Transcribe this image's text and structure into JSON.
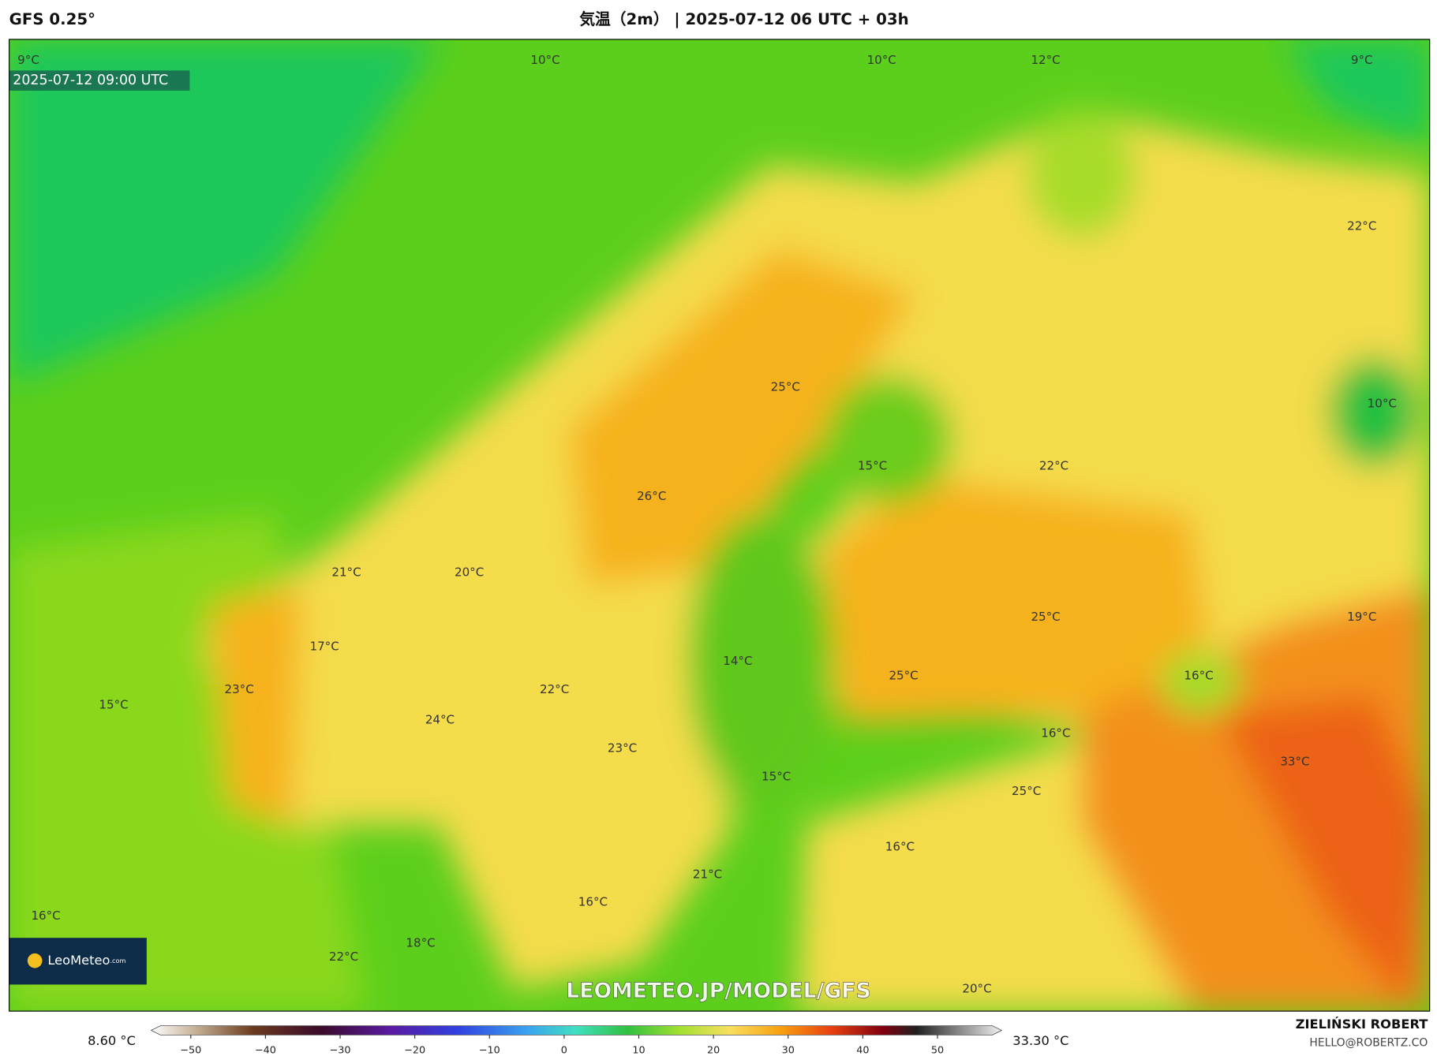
{
  "header": {
    "model": "GFS 0.25°",
    "title": "気温（2m） | 2025-07-12 06 UTC + 03h"
  },
  "map": {
    "timestamp": "2025-07-12 09:00 UTC",
    "labels": [
      "9°C",
      "10°C",
      "10°C",
      "12°C",
      "9°C",
      "22°C",
      "25°C",
      "10°C",
      "15°C",
      "22°C",
      "26°C",
      "21°C",
      "20°C",
      "19°C",
      "25°C",
      "17°C",
      "14°C",
      "25°C",
      "16°C",
      "23°C",
      "22°C",
      "15°C",
      "24°C",
      "16°C",
      "23°C",
      "33°C",
      "15°C",
      "25°C",
      "16°C",
      "21°C",
      "16°C",
      "16°C",
      "18°C",
      "22°C",
      "20°C"
    ],
    "logo": "LeoMeteo",
    "logo_suffix": ".com",
    "watermark": "LEOMETEO.JP/MODEL/GFS"
  },
  "colorbar": {
    "min_label": "8.60 °C",
    "max_label": "33.30 °C",
    "lim": [
      -55.3,
      58.6
    ],
    "ticks": [
      {
        "value": -50,
        "label": "−50"
      },
      {
        "value": -40,
        "label": "−40"
      },
      {
        "value": -30,
        "label": "−30"
      },
      {
        "value": -20,
        "label": "−20"
      },
      {
        "value": -10,
        "label": "−10"
      },
      0,
      10,
      20,
      30,
      40,
      50
    ]
  },
  "footer": {
    "author": "ZIELIŃSKI ROBERT",
    "email": "HELLO@ROBERTZ.CO"
  }
}
